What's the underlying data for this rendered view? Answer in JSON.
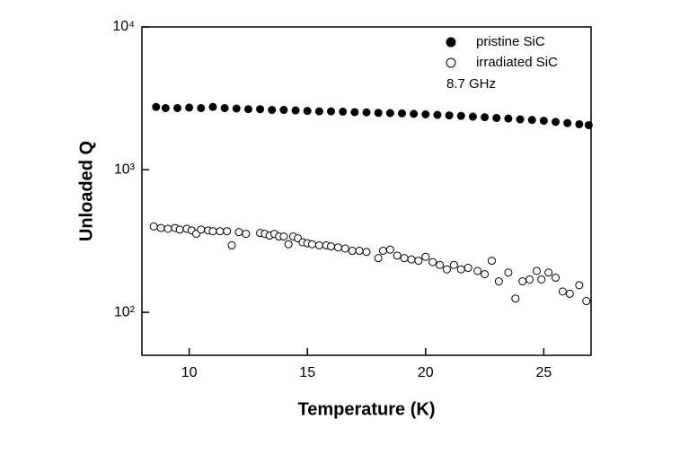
{
  "chart_data": {
    "type": "scatter",
    "x_label": "Temperature (K)",
    "y_label": "Unloaded Q",
    "annotation": "8.7 GHz",
    "log_y": true,
    "xlim": [
      8,
      27
    ],
    "ylim": [
      50,
      10000
    ],
    "xticks": [
      10,
      15,
      20,
      25
    ],
    "yticks": [
      {
        "value": 100,
        "label": "10²"
      },
      {
        "value": 1000,
        "label": "10³"
      },
      {
        "value": 10000,
        "label": "10⁴"
      }
    ],
    "legend": "top-right",
    "series": [
      {
        "name": "pristine SiC",
        "color": "#000000",
        "filled": true,
        "x": [
          8.6,
          9,
          9.5,
          10,
          10.5,
          11,
          11.5,
          12,
          12.5,
          13,
          13.5,
          14,
          14.5,
          15,
          15.5,
          16,
          16.5,
          17,
          17.5,
          18,
          18.5,
          19,
          19.5,
          20,
          20.5,
          21,
          21.5,
          22,
          22.5,
          23,
          23.5,
          24,
          24.5,
          25,
          25.5,
          26,
          26.5,
          26.9
        ],
        "values": [
          2750,
          2700,
          2700,
          2720,
          2700,
          2750,
          2700,
          2680,
          2650,
          2650,
          2620,
          2620,
          2600,
          2580,
          2560,
          2560,
          2550,
          2530,
          2520,
          2500,
          2490,
          2480,
          2460,
          2440,
          2420,
          2400,
          2380,
          2350,
          2330,
          2300,
          2280,
          2250,
          2230,
          2200,
          2160,
          2120,
          2080,
          2050
        ]
      },
      {
        "name": "irradiated SiC",
        "color": "#000000",
        "filled": false,
        "x": [
          8.5,
          8.8,
          9.1,
          9.4,
          9.6,
          9.9,
          10.1,
          10.3,
          10.5,
          10.8,
          11,
          11.3,
          11.6,
          11.8,
          12.1,
          12.4,
          13,
          13.2,
          13.4,
          13.6,
          13.8,
          14,
          14.2,
          14.4,
          14.6,
          14.8,
          15,
          15.2,
          15.5,
          15.8,
          16,
          16.3,
          16.6,
          16.9,
          17.2,
          17.5,
          18,
          18.2,
          18.5,
          18.8,
          19.1,
          19.4,
          19.7,
          20,
          20.3,
          20.6,
          20.9,
          21.2,
          21.5,
          21.8,
          22.2,
          22.5,
          22.8,
          23.1,
          23.5,
          23.8,
          24.1,
          24.4,
          24.7,
          24.9,
          25.2,
          25.5,
          25.8,
          26.1,
          26.5,
          26.8
        ],
        "values": [
          400,
          390,
          385,
          390,
          380,
          385,
          375,
          355,
          380,
          375,
          370,
          370,
          370,
          295,
          365,
          355,
          360,
          355,
          345,
          355,
          340,
          340,
          300,
          340,
          330,
          310,
          305,
          300,
          295,
          295,
          290,
          285,
          280,
          270,
          270,
          265,
          240,
          270,
          275,
          250,
          240,
          235,
          230,
          245,
          225,
          215,
          200,
          215,
          200,
          205,
          195,
          185,
          230,
          165,
          190,
          125,
          165,
          170,
          195,
          170,
          190,
          175,
          140,
          135,
          155,
          120
        ]
      }
    ]
  }
}
